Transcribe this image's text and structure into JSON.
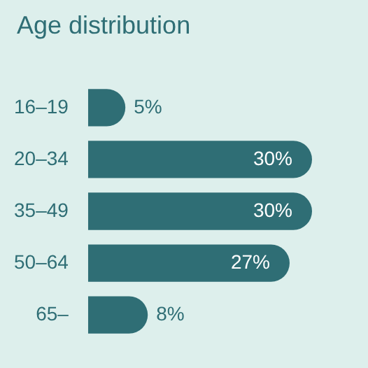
{
  "chart_data": {
    "type": "bar",
    "orientation": "horizontal",
    "title": "Age distribution",
    "categories": [
      "16–19",
      "20–34",
      "35–49",
      "50–64",
      "65–"
    ],
    "values": [
      5,
      30,
      30,
      27,
      8
    ],
    "color": "#2f6e75",
    "value_labels": [
      "5%",
      "30%",
      "30%",
      "27%",
      "8%"
    ],
    "grid": false,
    "legend": false,
    "tick_labels": "y"
  }
}
